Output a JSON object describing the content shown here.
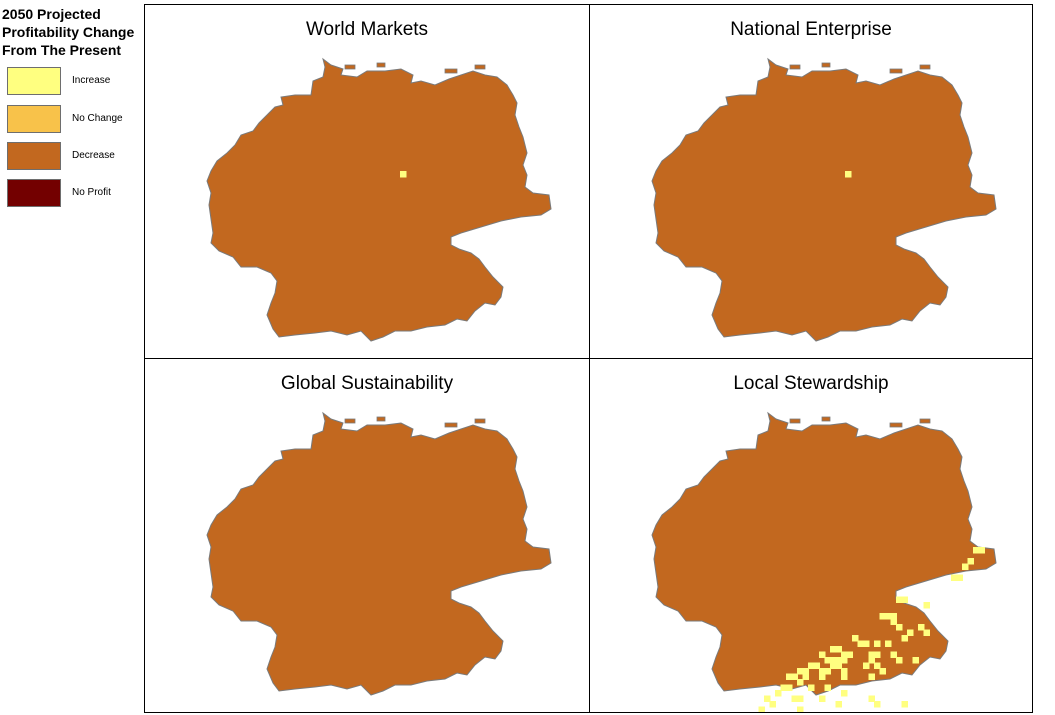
{
  "legend": {
    "title": "2050 Projected\nProfitability Change\nFrom The Present",
    "items": [
      {
        "label": "Increase",
        "color": "#ffff80"
      },
      {
        "label": "No Change",
        "color": "#f8c24a"
      },
      {
        "label": "Decrease",
        "color": "#c2681f"
      },
      {
        "label": "No Profit",
        "color": "#730000"
      }
    ]
  },
  "panels": [
    {
      "title": "World Markets",
      "increase_cells": [
        [
          30,
          14
        ]
      ]
    },
    {
      "title": "National Enterprise",
      "increase_cells": [
        [
          30,
          14
        ]
      ]
    },
    {
      "title": "Global Sustainability",
      "increase_cells": []
    },
    {
      "title": "Local Stewardship",
      "increase_cells": [
        [
          46,
          4
        ],
        [
          47,
          4
        ],
        [
          45,
          6
        ],
        [
          44,
          7
        ],
        [
          43,
          9
        ],
        [
          42,
          9
        ],
        [
          32,
          13
        ],
        [
          33,
          13
        ],
        [
          37,
          14
        ],
        [
          29,
          16
        ],
        [
          30,
          16
        ],
        [
          31,
          17
        ],
        [
          31,
          16
        ],
        [
          32,
          18
        ],
        [
          36,
          18
        ],
        [
          34,
          19
        ],
        [
          33,
          20
        ],
        [
          28,
          21
        ],
        [
          37,
          19
        ],
        [
          24,
          20
        ],
        [
          20,
          22
        ],
        [
          21,
          22
        ],
        [
          25,
          21
        ],
        [
          26,
          21
        ],
        [
          30,
          21
        ],
        [
          18,
          23
        ],
        [
          19,
          24
        ],
        [
          22,
          23
        ],
        [
          23,
          23
        ],
        [
          16,
          25
        ],
        [
          17,
          25
        ],
        [
          20,
          24
        ],
        [
          21,
          24
        ],
        [
          22,
          24
        ],
        [
          27,
          23
        ],
        [
          28,
          23
        ],
        [
          31,
          23
        ],
        [
          32,
          24
        ],
        [
          35,
          24
        ],
        [
          14,
          26
        ],
        [
          15,
          26
        ],
        [
          18,
          26
        ],
        [
          19,
          26
        ],
        [
          20,
          25
        ],
        [
          21,
          25
        ],
        [
          22,
          26
        ],
        [
          26,
          25
        ],
        [
          27,
          24
        ],
        [
          28,
          25
        ],
        [
          29,
          26
        ],
        [
          12,
          27
        ],
        [
          13,
          27
        ],
        [
          15,
          27
        ],
        [
          18,
          27
        ],
        [
          22,
          27
        ],
        [
          27,
          27
        ],
        [
          11,
          29
        ],
        [
          12,
          29
        ],
        [
          14,
          28
        ],
        [
          16,
          29
        ],
        [
          19,
          29
        ],
        [
          22,
          30
        ],
        [
          10,
          30
        ],
        [
          8,
          31
        ],
        [
          9,
          32
        ],
        [
          13,
          31
        ],
        [
          14,
          31
        ],
        [
          18,
          31
        ],
        [
          21,
          32
        ],
        [
          27,
          31
        ],
        [
          28,
          32
        ],
        [
          33,
          32
        ],
        [
          7,
          33
        ],
        [
          8,
          34
        ],
        [
          14,
          33
        ],
        [
          17,
          34
        ],
        [
          31,
          34
        ],
        [
          37,
          34
        ],
        [
          5,
          35
        ],
        [
          6,
          35
        ],
        [
          40,
          35
        ]
      ]
    }
  ]
}
